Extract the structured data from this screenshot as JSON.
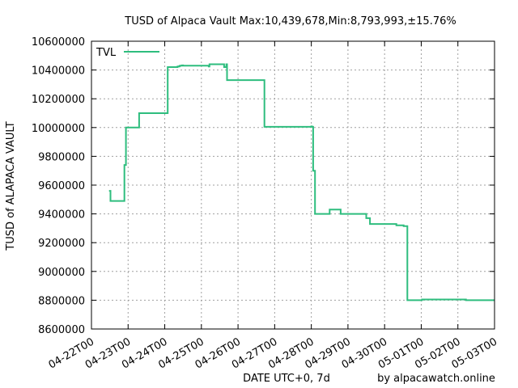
{
  "chart_data": {
    "type": "line",
    "title": "TUSD of Alpaca Vault Max:10,439,678,Min:8,793,993,±15.76%",
    "xlabel": "DATE UTC+0, 7d",
    "ylabel": "TUSD of ALAPACA VAULT",
    "credit": "by alpacawatch.online",
    "ylim": [
      8600000,
      10600000
    ],
    "y_ticks": [
      "8600000",
      "8800000",
      "9000000",
      "9200000",
      "9400000",
      "9600000",
      "9800000",
      "10000000",
      "10200000",
      "10400000",
      "10600000"
    ],
    "x_ticks": [
      "04-22T00",
      "04-23T00",
      "04-24T00",
      "04-25T00",
      "04-26T00",
      "04-27T00",
      "04-28T00",
      "04-29T00",
      "04-30T00",
      "05-01T00",
      "05-02T00",
      "05-03T00"
    ],
    "xlim_days": [
      0,
      11
    ],
    "grid": true,
    "legend_position": "top-left",
    "series": [
      {
        "name": "TVL",
        "color": "#2ebd7e",
        "x_day": [
          0.48,
          0.52,
          0.52,
          0.58,
          0.88,
          0.9,
          0.9,
          0.94,
          1.25,
          1.3,
          1.3,
          2.05,
          2.08,
          2.3,
          2.35,
          2.4,
          2.42,
          2.45,
          2.47,
          2.5,
          3.2,
          3.22,
          3.6,
          3.62,
          3.68,
          3.7,
          3.7,
          3.72,
          3.74,
          3.78,
          3.8,
          3.84,
          3.9,
          3.92,
          4.5,
          4.52,
          4.7,
          4.72,
          5.3,
          5.32,
          5.35,
          5.4,
          6.0,
          6.02,
          6.05,
          6.1,
          6.2,
          6.5,
          6.8,
          6.85,
          7.4,
          7.42,
          7.45,
          7.5,
          7.6,
          8.0,
          8.02,
          8.05,
          8.1,
          8.25,
          8.3,
          8.32,
          8.5,
          8.52,
          8.6,
          8.62,
          9.0,
          9.02,
          9.6,
          9.62,
          10.2,
          10.22,
          10.8,
          11.0
        ],
        "y": [
          9560000,
          9560000,
          9490000,
          9490000,
          9490000,
          9490000,
          9740000,
          10000000,
          10000000,
          10070000,
          10100000,
          10100000,
          10420000,
          10420000,
          10425000,
          10428000,
          10430000,
          10430000,
          10432000,
          10430000,
          10425000,
          10440000,
          10440000,
          10420000,
          10440000,
          10440000,
          10330000,
          10330000,
          10330000,
          10330000,
          10330000,
          10330000,
          10330000,
          10330000,
          10330000,
          10330000,
          10330000,
          10005000,
          10005000,
          10005000,
          10005000,
          10005000,
          10008000,
          10005000,
          9700000,
          9400000,
          9400000,
          9430000,
          9400000,
          9400000,
          9400000,
          9400000,
          9400000,
          9370000,
          9330000,
          9330000,
          9330000,
          9330000,
          9330000,
          9330000,
          9330000,
          9320000,
          9320000,
          9315000,
          9315000,
          8800000,
          8800000,
          8805000,
          8805000,
          8805000,
          8805000,
          8800000,
          8800000,
          8800000
        ]
      }
    ]
  }
}
